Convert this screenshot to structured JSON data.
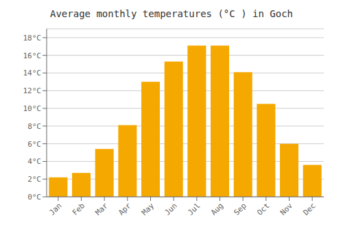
{
  "chart_data": {
    "type": "bar",
    "title": "Average monthly temperatures (°C ) in Goch",
    "categories": [
      "Jan",
      "Feb",
      "Mar",
      "Apr",
      "May",
      "Jun",
      "Jul",
      "Aug",
      "Sep",
      "Oct",
      "Nov",
      "Dec"
    ],
    "values": [
      2.2,
      2.7,
      5.4,
      8.1,
      13.0,
      15.3,
      17.1,
      17.1,
      14.1,
      10.5,
      6.0,
      3.6
    ],
    "color": "#F5A800",
    "ylim": [
      0,
      19
    ],
    "yticks": [
      {
        "value": 0,
        "label": "0°C"
      },
      {
        "value": 2,
        "label": "2°C"
      },
      {
        "value": 4,
        "label": "4°C"
      },
      {
        "value": 6,
        "label": "6°C"
      },
      {
        "value": 8,
        "label": "8°C"
      },
      {
        "value": 10,
        "label": "10°C"
      },
      {
        "value": 12,
        "label": "12°C"
      },
      {
        "value": 14,
        "label": "14°C"
      },
      {
        "value": 16,
        "label": "16°C"
      },
      {
        "value": 18,
        "label": "18°C"
      }
    ],
    "grid": true
  }
}
